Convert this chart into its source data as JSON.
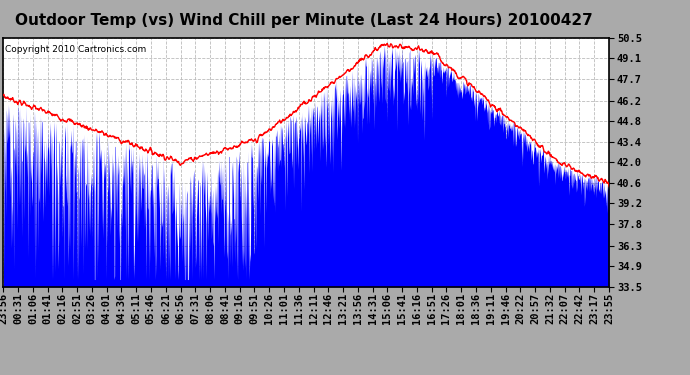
{
  "title": "Outdoor Temp (vs) Wind Chill per Minute (Last 24 Hours) 20100427",
  "copyright": "Copyright 2010 Cartronics.com",
  "yticks": [
    33.5,
    34.9,
    36.3,
    37.8,
    39.2,
    40.6,
    42.0,
    43.4,
    44.8,
    46.2,
    47.7,
    49.1,
    50.5
  ],
  "ymin": 33.5,
  "ymax": 50.5,
  "bg_color": "#ffffff",
  "grid_color": "#bbbbbb",
  "outer_bg": "#aaaaaa",
  "line_color_red": "#ff0000",
  "line_color_blue": "#0000ff",
  "title_fontsize": 11,
  "copyright_fontsize": 6.5,
  "tick_fontsize": 7.5,
  "time_labels": [
    "23:56",
    "00:31",
    "01:06",
    "01:41",
    "02:16",
    "02:51",
    "03:26",
    "04:01",
    "04:36",
    "05:11",
    "05:46",
    "06:21",
    "06:56",
    "07:31",
    "08:06",
    "08:41",
    "09:16",
    "09:51",
    "10:26",
    "11:01",
    "11:36",
    "12:11",
    "12:46",
    "13:21",
    "13:56",
    "14:31",
    "15:06",
    "15:41",
    "16:16",
    "16:51",
    "17:26",
    "18:01",
    "18:36",
    "19:11",
    "19:46",
    "20:22",
    "20:57",
    "21:32",
    "22:07",
    "22:42",
    "23:17",
    "23:55"
  ]
}
